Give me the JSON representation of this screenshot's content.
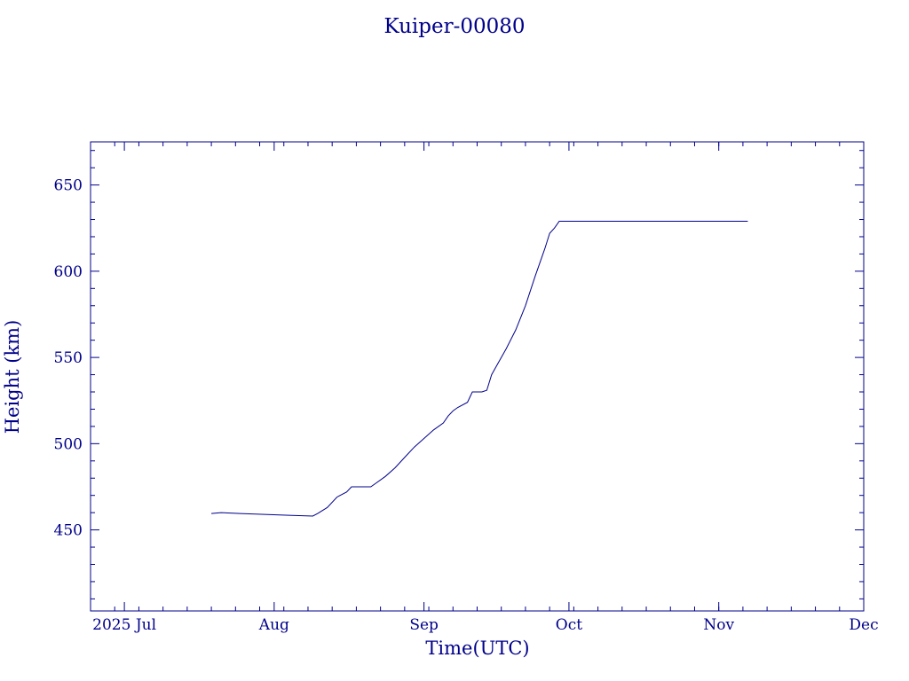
{
  "chart_data": {
    "type": "line",
    "title": "Kuiper-00080",
    "xlabel": "Time(UTC)",
    "ylabel": "Height (km)",
    "color": "#00008b",
    "xlim": [
      "2025-06-24",
      "2025-12-01"
    ],
    "ylim": [
      403,
      675
    ],
    "x_ticks": [
      {
        "date": "2025-07-01",
        "label": "2025 Jul"
      },
      {
        "date": "2025-08-01",
        "label": "Aug"
      },
      {
        "date": "2025-09-01",
        "label": "Sep"
      },
      {
        "date": "2025-10-01",
        "label": "Oct"
      },
      {
        "date": "2025-11-01",
        "label": "Nov"
      },
      {
        "date": "2025-12-01",
        "label": "Dec"
      }
    ],
    "y_ticks": [
      450,
      500,
      550,
      600,
      650
    ],
    "grid": false,
    "series": [
      {
        "x": [
          "2025-07-19",
          "2025-07-21",
          "2025-07-25",
          "2025-07-30",
          "2025-08-04",
          "2025-08-09",
          "2025-08-10",
          "2025-08-12",
          "2025-08-14",
          "2025-08-16",
          "2025-08-17",
          "2025-08-19",
          "2025-08-21",
          "2025-08-22",
          "2025-08-24",
          "2025-08-26",
          "2025-08-28",
          "2025-08-30",
          "2025-09-01",
          "2025-09-03",
          "2025-09-05",
          "2025-09-06",
          "2025-09-07",
          "2025-09-08",
          "2025-09-10",
          "2025-09-11",
          "2025-09-12",
          "2025-09-13",
          "2025-09-14",
          "2025-09-15",
          "2025-09-16",
          "2025-09-18",
          "2025-09-20",
          "2025-09-22",
          "2025-09-24",
          "2025-09-26",
          "2025-09-27",
          "2025-09-28",
          "2025-09-29",
          "2025-10-01",
          "2025-10-03",
          "2025-10-15",
          "2025-11-07"
        ],
        "y": [
          459.5,
          460,
          459.5,
          459,
          458.5,
          458,
          459.5,
          463,
          469,
          472,
          475,
          475,
          475,
          477,
          481,
          486,
          492,
          498,
          503,
          508,
          512,
          516,
          519,
          521,
          524,
          530,
          530,
          530,
          531,
          540,
          545,
          555,
          566,
          580,
          597,
          613,
          622,
          625,
          629,
          629,
          629,
          629,
          629
        ]
      }
    ]
  }
}
